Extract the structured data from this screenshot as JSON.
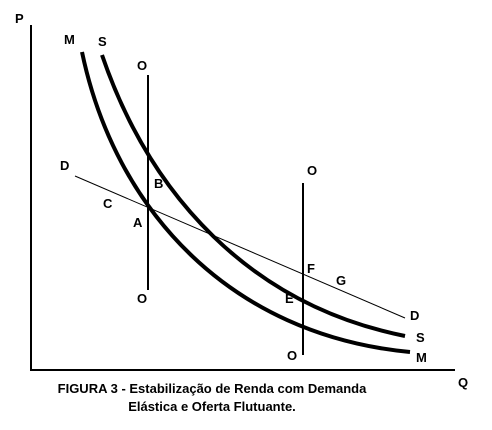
{
  "axis_labels": {
    "y": "P",
    "x": "Q"
  },
  "curve_labels": {
    "m_start": "M",
    "s_start": "S",
    "d_start": "D",
    "d_end": "D",
    "s_end": "S",
    "m_end": "M"
  },
  "supply_lines": {
    "first_top": "O",
    "first_bottom": "O",
    "second_top": "O",
    "second_bottom": "O"
  },
  "points": {
    "a": "A",
    "b": "B",
    "c": "C",
    "e": "E",
    "f": "F",
    "g": "G"
  },
  "caption": [
    "FIGURA 3 - Estabilização de Renda com Demanda",
    "Elástica e Oferta Flutuante."
  ]
}
